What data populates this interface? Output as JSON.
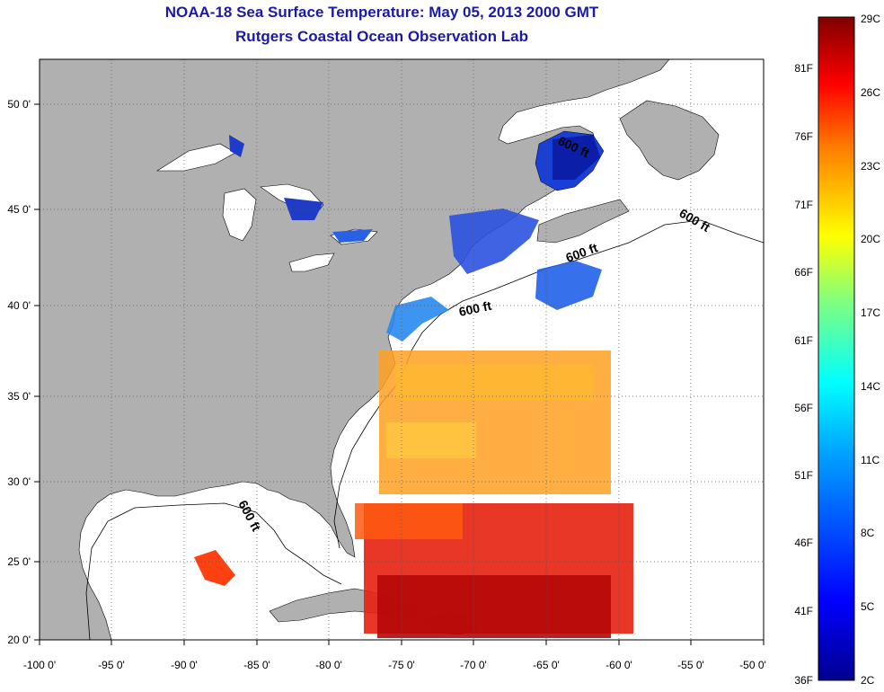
{
  "title": "NOAA-18 Sea Surface Temperature:  May 05, 2013 2000 GMT",
  "subtitle": "Rutgers Coastal Ocean Observation Lab",
  "lon_ticks": [
    "-100 0'",
    "-95 0'",
    "-90 0'",
    "-85 0'",
    "-80 0'",
    "-75 0'",
    "-70 0'",
    "-65 0'",
    "-60 0'",
    "-55 0'",
    "-50 0'"
  ],
  "lat_ticks": [
    "50 0'",
    "45 0'",
    "40 0'",
    "35 0'",
    "30 0'",
    "25 0'",
    "20 0'"
  ],
  "contour_labels": [
    "600 ft",
    "600 ft",
    "600 ft",
    "600 ft",
    "600 ft"
  ],
  "colorbar": {
    "celsius": [
      "29C",
      "26C",
      "23C",
      "20C",
      "17C",
      "14C",
      "11C",
      "8C",
      "5C",
      "2C"
    ],
    "fahrenheit": [
      "81F",
      "76F",
      "71F",
      "66F",
      "61F",
      "56F",
      "51F",
      "46F",
      "41F",
      "36F"
    ],
    "colors": [
      "#7f0000",
      "#ff0000",
      "#ff7f00",
      "#ffff00",
      "#7fff7f",
      "#00ffff",
      "#007fff",
      "#0000ff",
      "#00008f"
    ]
  },
  "colors": {
    "land": "#b0b0b0",
    "title": "#1a1aa6"
  }
}
